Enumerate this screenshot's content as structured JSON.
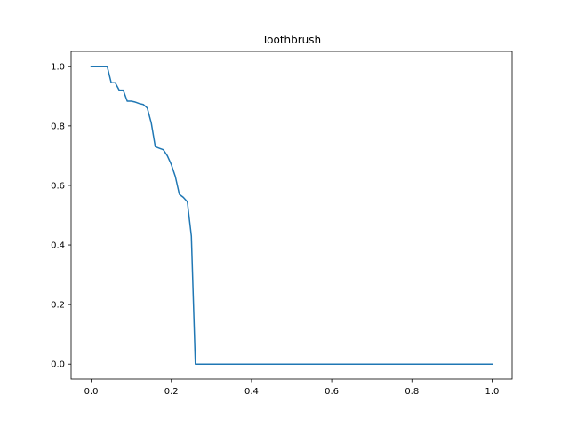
{
  "chart_data": {
    "type": "line",
    "title": "Toothbrush",
    "xlabel": "",
    "ylabel": "",
    "xlim": [
      -0.05,
      1.05
    ],
    "ylim": [
      -0.05,
      1.05
    ],
    "grid": false,
    "x_ticks": [
      "0.0",
      "0.2",
      "0.4",
      "0.6",
      "0.8",
      "1.0"
    ],
    "y_ticks": [
      "0.0",
      "0.2",
      "0.4",
      "0.6",
      "0.8",
      "1.0"
    ],
    "series": [
      {
        "color": "#1f77b4",
        "x": [
          0.0,
          0.04,
          0.05,
          0.06,
          0.07,
          0.08,
          0.09,
          0.1,
          0.11,
          0.12,
          0.13,
          0.14,
          0.15,
          0.16,
          0.17,
          0.18,
          0.19,
          0.2,
          0.21,
          0.22,
          0.23,
          0.24,
          0.25,
          0.26,
          1.0
        ],
        "y": [
          1.0,
          1.0,
          0.945,
          0.945,
          0.92,
          0.92,
          0.883,
          0.883,
          0.88,
          0.875,
          0.872,
          0.86,
          0.81,
          0.73,
          0.725,
          0.72,
          0.7,
          0.67,
          0.63,
          0.57,
          0.56,
          0.545,
          0.43,
          0.0,
          0.0
        ]
      }
    ]
  }
}
